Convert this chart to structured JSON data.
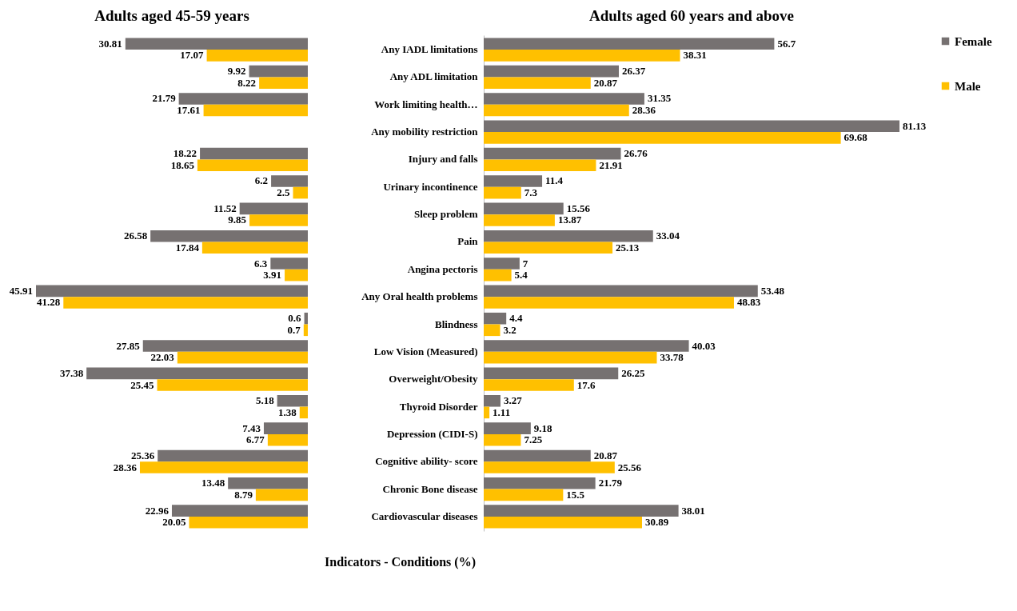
{
  "chart_data": [
    {
      "type": "bar",
      "orientation": "horizontal",
      "title": "Adults aged 45-59 years",
      "tick_labels": false,
      "data_labels": true,
      "categories": [
        null,
        null,
        null,
        null,
        null,
        null,
        null,
        null,
        null,
        null,
        null,
        null,
        null,
        null,
        null,
        null,
        null,
        null
      ],
      "series": [
        {
          "color": "#767171",
          "values": [
            30.81,
            9.92,
            21.79,
            null,
            18.22,
            6.2,
            11.52,
            26.58,
            6.3,
            45.91,
            0.6,
            27.85,
            37.38,
            5.18,
            7.43,
            25.36,
            13.48,
            22.96
          ]
        },
        {
          "color": "#ffc000",
          "values": [
            17.07,
            8.22,
            17.61,
            null,
            18.65,
            2.5,
            9.85,
            17.84,
            3.91,
            41.28,
            0.7,
            22.03,
            25.45,
            1.38,
            6.77,
            28.36,
            8.79,
            20.05
          ]
        }
      ]
    },
    {
      "type": "bar",
      "orientation": "horizontal",
      "title": "Adults aged 60 years and above",
      "ylabel": "Indicators - Conditions (%)",
      "tick_labels": "y",
      "data_labels": true,
      "legend": "right",
      "categories": [
        "Any IADL limitations",
        "Any ADL limitation",
        "Work limiting health…",
        "Any mobility restriction",
        "Injury and falls",
        "Urinary incontinence",
        "Sleep problem",
        "Pain",
        "Angina pectoris",
        "Any Oral health problems",
        "Blindness",
        "Low Vision (Measured)",
        "Overweight/Obesity",
        "Thyroid Disorder",
        "Depression (CIDI-S)",
        "Cognitive ability- score",
        "Chronic Bone disease",
        "Cardiovascular diseases"
      ],
      "series": [
        {
          "name": "Female",
          "color": "#767171",
          "values": [
            56.7,
            26.37,
            31.35,
            81.13,
            26.76,
            11.4,
            15.56,
            33.04,
            7,
            53.48,
            4.4,
            40.03,
            26.25,
            3.27,
            9.18,
            20.87,
            21.79,
            38.01
          ]
        },
        {
          "name": "Male",
          "color": "#ffc000",
          "values": [
            38.31,
            20.87,
            28.36,
            69.68,
            21.91,
            7.3,
            13.87,
            25.13,
            5.4,
            48.83,
            3.2,
            33.78,
            17.6,
            1.11,
            7.25,
            25.56,
            15.5,
            30.89
          ]
        }
      ]
    }
  ]
}
